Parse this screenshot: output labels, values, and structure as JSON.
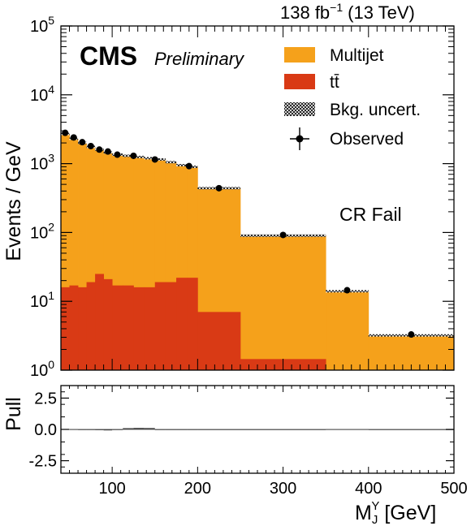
{
  "header": {
    "lumi": "138 fb",
    "lumi_exp": "−1",
    "energy": "(13 TeV)"
  },
  "labels": {
    "cms": "CMS",
    "preliminary": "Preliminary",
    "region": "CR Fail"
  },
  "colors": {
    "multijet": "#f5a11b",
    "ttbar": "#d93a15",
    "frame": "#000000",
    "pull_line": "#666666"
  },
  "chart_data": [
    {
      "type": "bar",
      "ylabel": "Events / GeV",
      "yscale": "log",
      "ylim": [
        1,
        100000
      ],
      "xlim": [
        40,
        500
      ],
      "bin_edges": [
        40,
        50,
        60,
        70,
        80,
        90,
        100,
        112.5,
        125,
        137.5,
        150,
        162.5,
        175,
        187.5,
        200,
        250,
        350,
        400,
        500
      ],
      "y_ticks": [
        {
          "value": 1,
          "base": "10",
          "exp": "0"
        },
        {
          "value": 10,
          "base": "10",
          "exp": "1"
        },
        {
          "value": 100,
          "base": "10",
          "exp": "2"
        },
        {
          "value": 1000,
          "base": "10",
          "exp": "3"
        },
        {
          "value": 10000,
          "base": "10",
          "exp": "4"
        },
        {
          "value": 100000,
          "base": "10",
          "exp": "5"
        }
      ],
      "series": [
        {
          "name": "Multijet",
          "stack_top": [
            2700,
            2300,
            2000,
            1750,
            1600,
            1450,
            1350,
            1300,
            1250,
            1200,
            1150,
            1050,
            950,
            900,
            440,
            90,
            14,
            3.2
          ]
        },
        {
          "name": "tt̄",
          "values": [
            16,
            17,
            16,
            19,
            25,
            21,
            17,
            17,
            16,
            16,
            19,
            19,
            22,
            22,
            7,
            1.45,
            1,
            1
          ]
        }
      ],
      "observed": {
        "name": "Observed",
        "x": [
          45,
          55,
          65,
          75,
          85,
          95,
          106,
          125,
          150,
          190,
          225,
          300,
          375,
          450
        ],
        "y": [
          2800,
          2400,
          2050,
          1800,
          1600,
          1500,
          1350,
          1300,
          1150,
          920,
          440,
          92,
          14.5,
          3.3
        ]
      },
      "uncertainty_name": "Bkg. uncert."
    },
    {
      "type": "line",
      "ylabel": "Pull",
      "ylim": [
        -3.5,
        3.5
      ],
      "y_ticks": [
        "2.5",
        "0.0",
        "-2.5"
      ],
      "x_ticks": [
        "100",
        "200",
        "300",
        "400",
        "500"
      ],
      "x_tick_values": [
        100,
        200,
        300,
        400,
        500
      ],
      "xlabel": "M",
      "xlabel_sub": "J",
      "xlabel_sup": "Y",
      "xlabel_unit": "[GeV]",
      "pull_values": [
        0.02,
        0.01,
        -0.01,
        -0.03,
        -0.06,
        -0.08,
        -0.05,
        0.1,
        0.12,
        0.11,
        -0.02,
        -0.03,
        -0.02,
        0.0,
        -0.01,
        0.0,
        0.01,
        0.0
      ]
    }
  ]
}
